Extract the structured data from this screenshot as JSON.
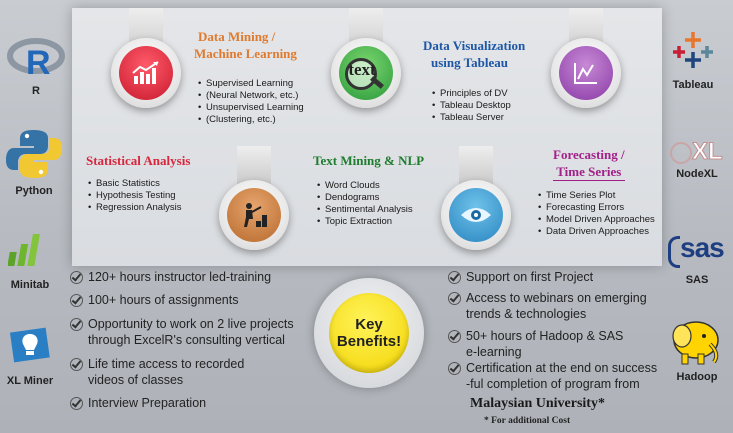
{
  "left_tools": [
    {
      "name": "R",
      "icon": "r-logo-icon"
    },
    {
      "name": "Python",
      "icon": "python-logo-icon"
    },
    {
      "name": "Minitab",
      "icon": "minitab-logo-icon"
    },
    {
      "name": "XL Miner",
      "icon": "xlminer-logo-icon"
    }
  ],
  "right_tools": [
    {
      "name": "Tableau",
      "icon": "tableau-logo-icon"
    },
    {
      "name": "NodeXL",
      "icon": "nodexl-logo-icon"
    },
    {
      "name": "SAS",
      "icon": "sas-logo-icon"
    },
    {
      "name": "Hadoop",
      "icon": "hadoop-elephant-icon"
    }
  ],
  "logo_text": {
    "sas": "sas",
    "nodexl": "XL",
    "tableau": "+"
  },
  "modules": {
    "data_mining": {
      "title_line1": "Data Mining /",
      "title_line2": "Machine Learning",
      "items": [
        "Supervised  Learning",
        "(Neural Network, etc.)",
        "Unsupervised Learning",
        "(Clustering, etc.)"
      ]
    },
    "data_viz": {
      "title_line1": "Data Visualization",
      "title_line2": "using Tableau",
      "items": [
        "Principles of DV",
        "Tableau Desktop",
        "Tableau Server"
      ]
    },
    "statistical": {
      "title": "Statistical Analysis",
      "items": [
        "Basic Statistics",
        "Hypothesis Testing",
        "Regression Analysis"
      ]
    },
    "text_mining": {
      "title": "Text Mining & NLP",
      "items": [
        "Word Clouds",
        "Dendograms",
        "Sentimental Analysis",
        "Topic Extraction"
      ],
      "icon_text": "text"
    },
    "forecasting": {
      "title_line1": "Forecasting /",
      "title_line2": "Time Series",
      "items": [
        "Time Series Plot",
        "Forecasting Errors",
        "Model Driven Approaches",
        "Data Driven Approaches"
      ]
    }
  },
  "benefits_left": [
    "120+ hours instructor led-training",
    "100+ hours of assignments",
    "Opportunity to work on 2 live projects",
    "through ExcelR's consulting vertical",
    "Life time access to recorded",
    "videos of classes",
    "Interview Preparation"
  ],
  "benefits_right": [
    "Support on first Project",
    "Access to webinars on emerging",
    "trends & technologies",
    "50+ hours of Hadoop & SAS",
    "e-learning",
    "Certification at the end on success",
    "-ful completion of program from"
  ],
  "key_benefits": {
    "line1": "Key",
    "line2": "Benefits!"
  },
  "university": "Malaysian University*",
  "footnote": "* For additional Cost",
  "colors": {
    "orange": "#e07a2e",
    "blue": "#1d57a6",
    "green": "#1e7d2e",
    "magenta": "#a3208a",
    "red": "#d7263d",
    "yellow": "#ffd400"
  }
}
